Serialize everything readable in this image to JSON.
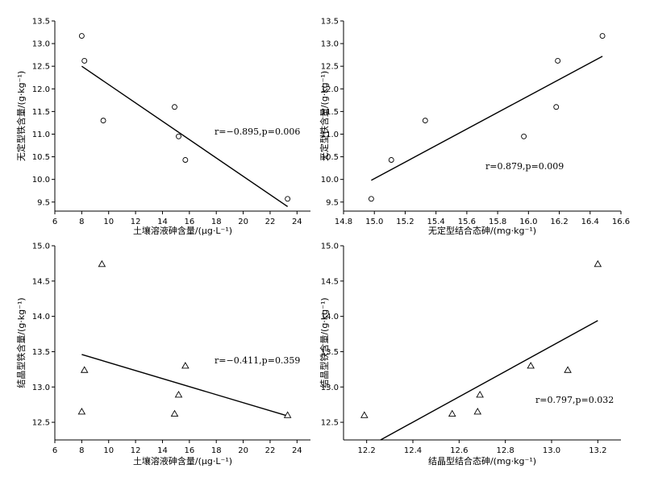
{
  "chart_data": [
    {
      "type": "scatter",
      "marker": "circle",
      "xlabel": "土壤溶液砷含量/(μg·L⁻¹)",
      "ylabel": "无定型铁含量/(g·kg⁻¹)",
      "xlim": [
        6,
        25
      ],
      "ylim": [
        9.3,
        13.5
      ],
      "xticks": [
        6,
        8,
        10,
        12,
        14,
        16,
        18,
        20,
        22,
        24
      ],
      "yticks": [
        9.5,
        10.0,
        10.5,
        11.0,
        11.5,
        12.0,
        12.5,
        13.0,
        13.5
      ],
      "x": [
        8.0,
        8.2,
        9.6,
        14.9,
        15.2,
        15.7,
        23.3
      ],
      "y": [
        13.17,
        12.62,
        11.3,
        11.6,
        10.95,
        10.43,
        9.57
      ],
      "fit_line": {
        "x": [
          8.0,
          23.3
        ],
        "y": [
          12.5,
          9.4
        ]
      },
      "annotation": "r=−0.895,p=0.006"
    },
    {
      "type": "scatter",
      "marker": "circle",
      "xlabel": "无定型结合态砷/(mg·kg⁻¹)",
      "ylabel": "无定型铁含量/(g·kg⁻¹)",
      "xlim": [
        14.8,
        16.6
      ],
      "ylim": [
        9.3,
        13.5
      ],
      "xticks": [
        14.8,
        15.0,
        15.2,
        15.4,
        15.6,
        15.8,
        16.0,
        16.2,
        16.4,
        16.6
      ],
      "yticks": [
        9.5,
        10.0,
        10.5,
        11.0,
        11.5,
        12.0,
        12.5,
        13.0,
        13.5
      ],
      "x": [
        14.98,
        15.11,
        15.33,
        15.97,
        16.18,
        16.19,
        16.48
      ],
      "y": [
        9.57,
        10.43,
        11.3,
        10.95,
        11.6,
        12.62,
        13.17
      ],
      "fit_line": {
        "x": [
          14.98,
          16.48
        ],
        "y": [
          9.98,
          12.72
        ]
      },
      "annotation": "r=0.879,p=0.009"
    },
    {
      "type": "scatter",
      "marker": "triangle",
      "xlabel": "土壤溶液砷含量/(μg·L⁻¹)",
      "ylabel": "结晶型铁含量/(g·kg⁻¹)",
      "xlim": [
        6,
        25
      ],
      "ylim": [
        12.25,
        15.0
      ],
      "xticks": [
        6,
        8,
        10,
        12,
        14,
        16,
        18,
        20,
        22,
        24
      ],
      "yticks": [
        12.5,
        13.0,
        13.5,
        14.0,
        14.5,
        15.0
      ],
      "x": [
        8.0,
        8.2,
        9.5,
        14.9,
        15.2,
        15.7,
        23.3
      ],
      "y": [
        12.65,
        13.24,
        14.74,
        12.62,
        12.89,
        13.3,
        12.6
      ],
      "fit_line": {
        "x": [
          8.0,
          23.3
        ],
        "y": [
          13.46,
          12.59
        ]
      },
      "annotation": "r=−0.411,p=0.359"
    },
    {
      "type": "scatter",
      "marker": "triangle",
      "xlabel": "结晶型结合态砷/(mg·kg⁻¹)",
      "ylabel": "结晶型铁含量/(g·kg⁻¹)",
      "xlim": [
        12.1,
        13.3
      ],
      "ylim": [
        12.25,
        15.0
      ],
      "xticks": [
        12.2,
        12.4,
        12.6,
        12.8,
        13.0,
        13.2
      ],
      "yticks": [
        12.5,
        13.0,
        13.5,
        14.0,
        14.5,
        15.0
      ],
      "x": [
        12.19,
        12.57,
        12.68,
        12.69,
        12.91,
        13.07,
        13.2
      ],
      "y": [
        12.6,
        12.62,
        12.65,
        12.89,
        13.3,
        13.24,
        14.74
      ],
      "fit_line": {
        "x": [
          12.26,
          13.2
        ],
        "y": [
          12.25,
          13.94
        ]
      },
      "annotation": "r=0.797,p=0.032"
    }
  ]
}
